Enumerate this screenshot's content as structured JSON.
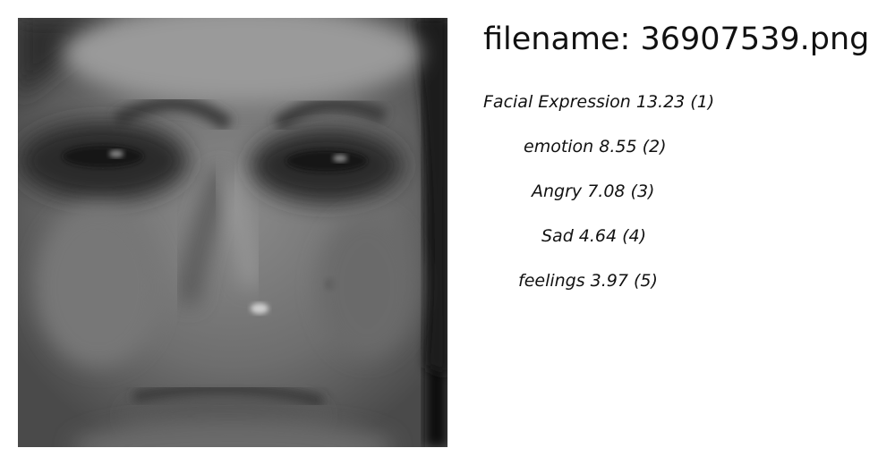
{
  "filename_line": "filename: 36907539.png",
  "tags": [
    {
      "text": "Facial Expression 13.23 (1)"
    },
    {
      "text": "emotion  8.55 (2)"
    },
    {
      "text": "Angry  7.08 (3)"
    },
    {
      "text": "Sad  4.64 (4)"
    },
    {
      "text": "feelings  3.97 (5)"
    }
  ]
}
